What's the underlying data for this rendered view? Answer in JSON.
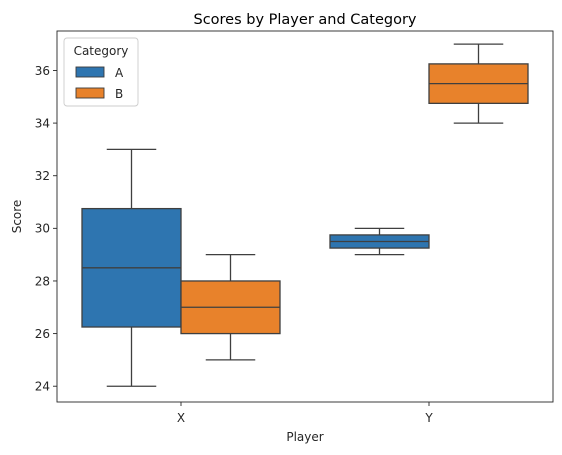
{
  "chart_data": {
    "type": "box",
    "title": "Scores by Player and Category",
    "xlabel": "Player",
    "ylabel": "Score",
    "categories": [
      "X",
      "Y"
    ],
    "ylim": [
      23.4,
      37.5
    ],
    "yticks": [
      24,
      26,
      28,
      30,
      32,
      34,
      36
    ],
    "grid": false,
    "legend": {
      "title": "Category",
      "placement": "top-left"
    },
    "series": [
      {
        "name": "A",
        "color": "#2e75b0",
        "boxes": [
          {
            "category": "X",
            "min": 24,
            "q1": 26.25,
            "median": 28.5,
            "q3": 30.75,
            "max": 33
          },
          {
            "category": "Y",
            "min": 29,
            "q1": 29.25,
            "median": 29.5,
            "q3": 29.75,
            "max": 30
          }
        ]
      },
      {
        "name": "B",
        "color": "#e8822b",
        "boxes": [
          {
            "category": "X",
            "min": 25,
            "q1": 26,
            "median": 27,
            "q3": 28,
            "max": 29
          },
          {
            "category": "Y",
            "min": 34,
            "q1": 34.75,
            "median": 35.5,
            "q3": 36.25,
            "max": 37
          }
        ]
      }
    ]
  }
}
